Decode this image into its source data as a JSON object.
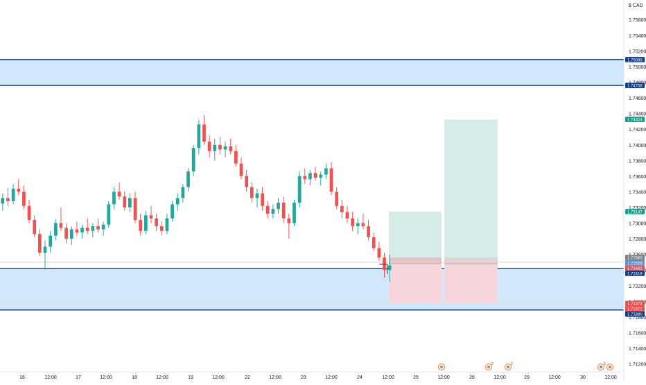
{
  "chart_data": {
    "type": "candlestick",
    "currency": "CAD",
    "x_tick_labels": [
      "16",
      "12:00",
      "17",
      "12:00",
      "18",
      "12:00",
      "19",
      "12:00",
      "22",
      "12:00",
      "23",
      "12:00",
      "24",
      "12:00",
      "25",
      "12:00",
      "26",
      "12:00",
      "29",
      "12:00",
      "30",
      "12:00"
    ],
    "y_tick_labels": [
      "1.75600",
      "1.75400",
      "1.75200",
      "1.75000",
      "1.74800",
      "1.74600",
      "1.74400",
      "1.74200",
      "1.74000",
      "1.73800",
      "1.73600",
      "1.73400",
      "1.73200",
      "1.73000",
      "1.72800",
      "1.72600",
      "1.72400",
      "1.72200",
      "1.72000",
      "1.71800",
      "1.71600",
      "1.71400",
      "1.71200"
    ],
    "ylim": [
      1.711,
      1.7585
    ],
    "candles": [
      [
        1.7325,
        1.7338,
        1.7316,
        1.7332
      ],
      [
        1.7332,
        1.7345,
        1.7322,
        1.7328
      ],
      [
        1.7328,
        1.735,
        1.7324,
        1.7344
      ],
      [
        1.7344,
        1.7356,
        1.7336,
        1.734
      ],
      [
        1.734,
        1.7348,
        1.7318,
        1.7322
      ],
      [
        1.7322,
        1.733,
        1.73,
        1.7304
      ],
      [
        1.7304,
        1.731,
        1.7282,
        1.7286
      ],
      [
        1.7286,
        1.7292,
        1.7258,
        1.7262
      ],
      [
        1.7262,
        1.7278,
        1.724,
        1.727
      ],
      [
        1.727,
        1.729,
        1.7262,
        1.7284
      ],
      [
        1.7284,
        1.7305,
        1.7278,
        1.73
      ],
      [
        1.73,
        1.732,
        1.729,
        1.7294
      ],
      [
        1.7294,
        1.73,
        1.7274,
        1.728
      ],
      [
        1.728,
        1.7296,
        1.7272,
        1.7292
      ],
      [
        1.7292,
        1.7302,
        1.7284,
        1.7288
      ],
      [
        1.7288,
        1.7298,
        1.728,
        1.7294
      ],
      [
        1.7294,
        1.7306,
        1.7286,
        1.729
      ],
      [
        1.729,
        1.73,
        1.7282,
        1.7296
      ],
      [
        1.7296,
        1.7306,
        1.7288,
        1.7292
      ],
      [
        1.7292,
        1.7302,
        1.7284,
        1.7298
      ],
      [
        1.7298,
        1.7328,
        1.7294,
        1.7324
      ],
      [
        1.7324,
        1.7346,
        1.7318,
        1.734
      ],
      [
        1.734,
        1.7352,
        1.733,
        1.7334
      ],
      [
        1.7334,
        1.734,
        1.7316,
        1.732
      ],
      [
        1.732,
        1.7338,
        1.7314,
        1.7332
      ],
      [
        1.7332,
        1.734,
        1.73,
        1.7304
      ],
      [
        1.7304,
        1.7312,
        1.7284,
        1.729
      ],
      [
        1.729,
        1.7316,
        1.7286,
        1.731
      ],
      [
        1.731,
        1.7322,
        1.73,
        1.7306
      ],
      [
        1.7306,
        1.7312,
        1.729,
        1.7296
      ],
      [
        1.7296,
        1.7302,
        1.7284,
        1.729
      ],
      [
        1.729,
        1.7312,
        1.7286,
        1.7306
      ],
      [
        1.7306,
        1.7328,
        1.7302,
        1.7324
      ],
      [
        1.7324,
        1.7338,
        1.7316,
        1.7332
      ],
      [
        1.7332,
        1.735,
        1.7326,
        1.7346
      ],
      [
        1.7346,
        1.737,
        1.734,
        1.7366
      ],
      [
        1.7366,
        1.74,
        1.736,
        1.7396
      ],
      [
        1.7396,
        1.7432,
        1.7388,
        1.7426
      ],
      [
        1.7426,
        1.7438,
        1.74,
        1.7404
      ],
      [
        1.7404,
        1.7412,
        1.7384,
        1.7392
      ],
      [
        1.7392,
        1.7408,
        1.738,
        1.74
      ],
      [
        1.74,
        1.741,
        1.7388,
        1.7394
      ],
      [
        1.7394,
        1.7404,
        1.7384,
        1.7398
      ],
      [
        1.7398,
        1.7408,
        1.7388,
        1.7392
      ],
      [
        1.7392,
        1.74,
        1.7372,
        1.7376
      ],
      [
        1.7376,
        1.7384,
        1.7356,
        1.736
      ],
      [
        1.736,
        1.7368,
        1.734,
        1.7346
      ],
      [
        1.7346,
        1.7352,
        1.7326,
        1.7332
      ],
      [
        1.7332,
        1.7344,
        1.732,
        1.7338
      ],
      [
        1.7338,
        1.7346,
        1.7316,
        1.7322
      ],
      [
        1.7322,
        1.7328,
        1.7306,
        1.7312
      ],
      [
        1.7312,
        1.7324,
        1.7306,
        1.7318
      ],
      [
        1.7318,
        1.7332,
        1.7312,
        1.7326
      ],
      [
        1.7326,
        1.7334,
        1.73,
        1.7306
      ],
      [
        1.7306,
        1.7312,
        1.728,
        1.73
      ],
      [
        1.73,
        1.733,
        1.7296,
        1.7326
      ],
      [
        1.7326,
        1.7366,
        1.732,
        1.736
      ],
      [
        1.736,
        1.737,
        1.735,
        1.7356
      ],
      [
        1.7356,
        1.7368,
        1.7348,
        1.7364
      ],
      [
        1.7364,
        1.7372,
        1.7354,
        1.7358
      ],
      [
        1.7358,
        1.7366,
        1.7348,
        1.7362
      ],
      [
        1.7362,
        1.7376,
        1.7356,
        1.737
      ],
      [
        1.737,
        1.7378,
        1.7336,
        1.734
      ],
      [
        1.734,
        1.7346,
        1.7318,
        1.7322
      ],
      [
        1.7322,
        1.733,
        1.7306,
        1.7314
      ],
      [
        1.7314,
        1.7322,
        1.73,
        1.7306
      ],
      [
        1.7306,
        1.7314,
        1.729,
        1.7296
      ],
      [
        1.7296,
        1.7306,
        1.7286,
        1.73
      ],
      [
        1.73,
        1.7312,
        1.7292,
        1.7296
      ],
      [
        1.7296,
        1.7304,
        1.7278,
        1.7282
      ],
      [
        1.7282,
        1.7288,
        1.7264,
        1.7268
      ],
      [
        1.7268,
        1.7276,
        1.7252,
        1.7256
      ],
      [
        1.7256,
        1.7262,
        1.723,
        1.724
      ],
      [
        1.724,
        1.726,
        1.7225,
        1.7246
      ]
    ],
    "x_axis_clock_time_label": "12:00",
    "support_zone": {
      "low": 1.7189,
      "high": 1.72418
    },
    "resistance_zone": {
      "low": 1.74758,
      "high": 1.75089
    },
    "positions": [
      {
        "entry": 1.72482,
        "target": 1.73147,
        "stop": 1.71972
      },
      {
        "entry": 1.72482,
        "target": 1.74324,
        "stop": 1.71971
      }
    ],
    "price_tags": [
      {
        "value": 1.75089,
        "label": "1.75089",
        "color": "#0b3a8c"
      },
      {
        "value": 1.74758,
        "label": "1.74758",
        "color": "#0b3a8c"
      },
      {
        "value": 1.74324,
        "label": "1.74324",
        "color": "#0f9d8a"
      },
      {
        "value": 1.73147,
        "label": "1.73147",
        "color": "#0f9d8a"
      },
      {
        "value": 1.7256,
        "label": "1.72560",
        "color": "#7d8088"
      },
      {
        "value": 1.72559,
        "label": "1.72559",
        "color": "#5d8fd6"
      },
      {
        "value": 1.72482,
        "label": "1.72482",
        "color": "#e2504f"
      },
      {
        "value": 1.72418,
        "label": "1.72418",
        "color": "#0b3a8c"
      },
      {
        "value": 1.71972,
        "label": "1.71972",
        "color": "#e2504f"
      },
      {
        "value": 1.71971,
        "label": "1.71971",
        "color": "#e2504f"
      },
      {
        "value": 1.7189,
        "label": "1.71890",
        "color": "#0b3a8c"
      }
    ],
    "event_markers": [
      {
        "icon": "flag-icon",
        "count": ""
      },
      {
        "icon": "flag-icon",
        "count": "2"
      },
      {
        "icon": "calendar-icon",
        "count": "2"
      },
      {
        "icon": "flag-icon",
        "count": "5"
      },
      {
        "icon": "calendar-icon",
        "count": ""
      }
    ],
    "colors": {
      "up": "#26a69a",
      "down": "#ef5350",
      "zone_fill": "#d1e7fc",
      "zone_line": "#0b3a8c",
      "profit_fill": "#d4ede9",
      "loss_fill": "#f6d6da",
      "axis_text": "#131722",
      "grid": "#e0e3eb"
    }
  }
}
